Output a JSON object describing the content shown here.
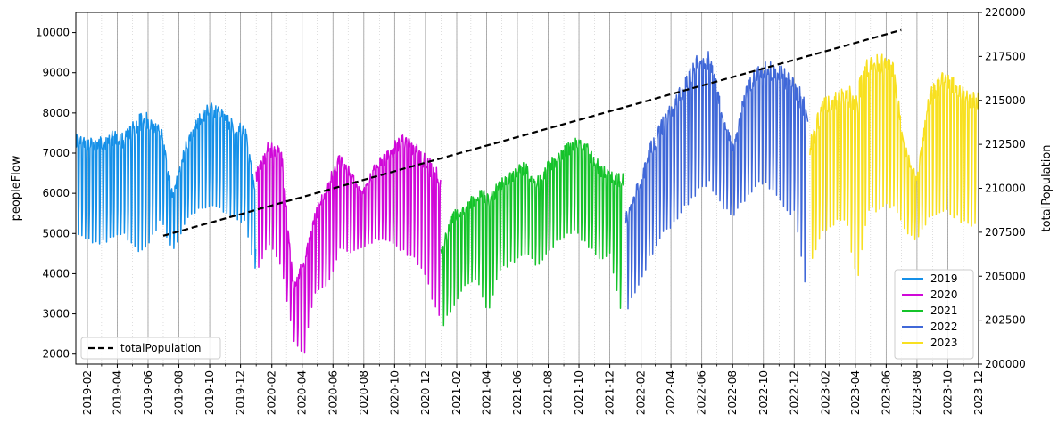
{
  "chart_data": {
    "type": "line",
    "title": "",
    "xlabel": "",
    "ylabel": "peopleFlow",
    "y2label": "totalPopulation",
    "xlim": [
      "2019-01-09",
      "2023-12-01"
    ],
    "ylim": [
      1750,
      10500
    ],
    "y2lim": [
      200000,
      220000
    ],
    "grid": "vertical month lines (major/minor)",
    "legend_primary": "lower right",
    "legend_secondary": "lower left",
    "x_ticks": [
      "2019-02",
      "2019-04",
      "2019-06",
      "2019-08",
      "2019-10",
      "2019-12",
      "2020-02",
      "2020-04",
      "2020-06",
      "2020-08",
      "2020-10",
      "2020-12",
      "2021-02",
      "2021-04",
      "2021-06",
      "2021-08",
      "2021-10",
      "2021-12",
      "2022-02",
      "2022-04",
      "2022-06",
      "2022-08",
      "2022-10",
      "2022-12",
      "2023-02",
      "2023-04",
      "2023-06",
      "2023-08",
      "2023-10",
      "2023-12"
    ],
    "y_ticks": [
      2000,
      3000,
      4000,
      5000,
      6000,
      7000,
      8000,
      9000,
      10000
    ],
    "y2_ticks": [
      200000,
      202500,
      205000,
      207500,
      210000,
      212500,
      215000,
      217500,
      220000
    ],
    "series": [
      {
        "name": "2019",
        "color": "#1590e8",
        "x": [
          "2019-01-09",
          "2019-02-01",
          "2019-03-01",
          "2019-03-25",
          "2019-04-15",
          "2019-05-10",
          "2019-06-01",
          "2019-06-25",
          "2019-07-20",
          "2019-08-15",
          "2019-09-10",
          "2019-10-01",
          "2019-10-25",
          "2019-11-20",
          "2019-12-10",
          "2019-12-31"
        ],
        "high": [
          7600,
          7500,
          7550,
          7700,
          7600,
          8100,
          8200,
          7900,
          6100,
          7400,
          8100,
          8400,
          8200,
          7900,
          7800,
          6100
        ],
        "low": [
          5000,
          4800,
          4700,
          4800,
          4900,
          4500,
          4600,
          5300,
          4500,
          5300,
          5600,
          5600,
          5500,
          5300,
          5200,
          4000
        ]
      },
      {
        "name": "2020",
        "color": "#d008d8",
        "x": [
          "2020-01-01",
          "2020-01-25",
          "2020-02-20",
          "2020-03-15",
          "2020-04-05",
          "2020-04-25",
          "2020-05-20",
          "2020-06-15",
          "2020-07-10",
          "2020-08-01",
          "2020-08-25",
          "2020-09-20",
          "2020-10-15",
          "2020-11-10",
          "2020-12-01",
          "2020-12-31"
        ],
        "high": [
          6700,
          7400,
          7300,
          3800,
          4600,
          5600,
          6400,
          7200,
          6600,
          6200,
          6900,
          7200,
          7700,
          7400,
          7100,
          6800
        ],
        "low": [
          4000,
          4700,
          4100,
          2300,
          1900,
          3500,
          3600,
          4600,
          4500,
          4600,
          4800,
          4800,
          4500,
          4300,
          3800,
          2700
        ]
      },
      {
        "name": "2021",
        "color": "#15c32a",
        "x": [
          "2021-01-01",
          "2021-01-25",
          "2021-02-20",
          "2021-03-15",
          "2021-04-05",
          "2021-04-25",
          "2021-05-20",
          "2021-06-15",
          "2021-07-10",
          "2021-08-01",
          "2021-08-25",
          "2021-09-20",
          "2021-10-15",
          "2021-11-10",
          "2021-12-01",
          "2021-12-28"
        ],
        "high": [
          4800,
          5700,
          5900,
          6200,
          6200,
          6400,
          6700,
          6900,
          6500,
          6900,
          7200,
          7500,
          7400,
          6900,
          6700,
          6800
        ],
        "low": [
          2600,
          3100,
          3700,
          3800,
          2900,
          4000,
          4200,
          4500,
          4100,
          4500,
          4800,
          5000,
          4700,
          4300,
          4400,
          2700
        ]
      },
      {
        "name": "2022",
        "color": "#4068d8",
        "x": [
          "2022-01-01",
          "2022-01-25",
          "2022-02-20",
          "2022-03-15",
          "2022-04-05",
          "2022-04-25",
          "2022-05-20",
          "2022-06-15",
          "2022-07-10",
          "2022-08-01",
          "2022-08-25",
          "2022-09-20",
          "2022-10-15",
          "2022-11-10",
          "2022-12-01",
          "2022-12-28"
        ],
        "high": [
          5600,
          6400,
          7400,
          8000,
          8500,
          8900,
          9600,
          9700,
          8400,
          7300,
          8700,
          9400,
          9400,
          9300,
          9000,
          8600
        ],
        "low": [
          3000,
          3600,
          4400,
          4900,
          5200,
          5500,
          5900,
          6200,
          5600,
          5400,
          5800,
          6200,
          6100,
          5600,
          5400,
          3300
        ]
      },
      {
        "name": "2023",
        "color": "#f8e020",
        "x": [
          "2023-01-01",
          "2023-01-25",
          "2023-02-20",
          "2023-03-15",
          "2023-04-05",
          "2023-04-25",
          "2023-05-20",
          "2023-06-15",
          "2023-07-10",
          "2023-08-01",
          "2023-08-25",
          "2023-09-20",
          "2023-10-15",
          "2023-11-10",
          "2023-11-30"
        ],
        "high": [
          7500,
          8500,
          8700,
          8800,
          8900,
          9600,
          9700,
          9500,
          7300,
          6500,
          8700,
          9200,
          9100,
          8800,
          8700
        ],
        "low": [
          4000,
          5000,
          5200,
          5300,
          3500,
          5500,
          5500,
          5600,
          5000,
          4800,
          5300,
          5500,
          5300,
          5200,
          5100
        ]
      }
    ],
    "total_population": {
      "name": "totalPopulation",
      "style": "dashed",
      "color": "#000000",
      "x": [
        "2019-07-01",
        "2023-07-01"
      ],
      "y": [
        207300,
        219000
      ]
    }
  }
}
